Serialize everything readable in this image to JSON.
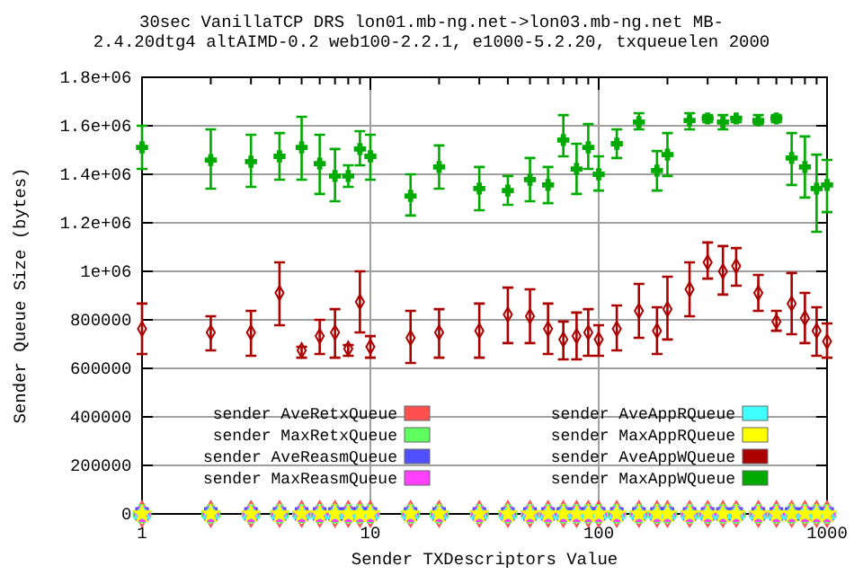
{
  "chart_data": {
    "type": "scatter",
    "title": "30sec VanillaTCP DRS lon01.mb-ng.net->lon03.mb-ng.net MB-",
    "subtitle": "2.4.20dtg4 altAIMD-0.2 web100-2.2.1, e1000-5.2.20, txqueuelen 2000",
    "xlabel": "Sender TXDescriptors Value",
    "ylabel": "Sender Queue Size (bytes)",
    "x": [
      1,
      2,
      3,
      4,
      5,
      6,
      7,
      8,
      9,
      10,
      15,
      20,
      30,
      40,
      50,
      60,
      70,
      80,
      90,
      100,
      120,
      150,
      180,
      200,
      250,
      300,
      350,
      400,
      500,
      600,
      700,
      800,
      900,
      1000
    ],
    "log": "x",
    "xlim": [
      1,
      1000
    ],
    "xticks": [
      1,
      {
        "value": 2,
        "label": null
      },
      {
        "value": 3,
        "label": null
      },
      {
        "value": 4,
        "label": null
      },
      {
        "value": 5,
        "label": null
      },
      {
        "value": 6,
        "label": null
      },
      {
        "value": 7,
        "label": null
      },
      {
        "value": 8,
        "label": null
      },
      {
        "value": 9,
        "label": null
      },
      10,
      {
        "value": 20,
        "label": null
      },
      {
        "value": 30,
        "label": null
      },
      {
        "value": 40,
        "label": null
      },
      {
        "value": 50,
        "label": null
      },
      {
        "value": 60,
        "label": null
      },
      {
        "value": 70,
        "label": null
      },
      {
        "value": 80,
        "label": null
      },
      {
        "value": 90,
        "label": null
      },
      100,
      {
        "value": 200,
        "label": null
      },
      {
        "value": 300,
        "label": null
      },
      {
        "value": 400,
        "label": null
      },
      {
        "value": 500,
        "label": null
      },
      {
        "value": 600,
        "label": null
      },
      {
        "value": 700,
        "label": null
      },
      {
        "value": 800,
        "label": null
      },
      {
        "value": 900,
        "label": null
      },
      1000
    ],
    "ylim": [
      0,
      1800000
    ],
    "yticks": [
      0,
      200000,
      400000,
      600000,
      800000,
      {
        "value": 1000000,
        "label": "1e+06"
      },
      {
        "value": 1200000,
        "label": "1.2e+06"
      },
      {
        "value": 1400000,
        "label": "1.4e+06"
      },
      {
        "value": 1600000,
        "label": "1.6e+06"
      },
      {
        "value": 1800000,
        "label": "1.8e+06"
      }
    ],
    "grid": true,
    "legend": "bottom",
    "series": [
      {
        "name": "sender AveRetxQueue",
        "color": "#ff5050",
        "marker": "diamond",
        "values": [
          0,
          0,
          0,
          0,
          0,
          0,
          0,
          0,
          0,
          0,
          0,
          0,
          0,
          0,
          0,
          0,
          0,
          0,
          0,
          0,
          0,
          0,
          0,
          0,
          0,
          0,
          0,
          0,
          0,
          0,
          0,
          0,
          0,
          0
        ]
      },
      {
        "name": "sender MaxRetxQueue",
        "color": "#60ff60",
        "marker": "cross",
        "values": [
          0,
          0,
          0,
          0,
          0,
          0,
          0,
          0,
          0,
          0,
          0,
          0,
          0,
          0,
          0,
          0,
          0,
          0,
          0,
          0,
          0,
          0,
          0,
          0,
          0,
          0,
          0,
          0,
          0,
          0,
          0,
          0,
          0,
          0
        ]
      },
      {
        "name": "sender AveReasmQueue",
        "color": "#5050ff",
        "marker": "square",
        "values": [
          0,
          0,
          0,
          0,
          0,
          0,
          0,
          0,
          0,
          0,
          0,
          0,
          0,
          0,
          0,
          0,
          0,
          0,
          0,
          0,
          0,
          0,
          0,
          0,
          0,
          0,
          0,
          0,
          0,
          0,
          0,
          0,
          0,
          0
        ]
      },
      {
        "name": "sender MaxReasmQueue",
        "color": "#ff40ff",
        "marker": "cross",
        "values": [
          0,
          0,
          0,
          0,
          0,
          0,
          0,
          0,
          0,
          0,
          0,
          0,
          0,
          0,
          0,
          0,
          0,
          0,
          0,
          0,
          0,
          0,
          0,
          0,
          0,
          0,
          0,
          0,
          0,
          0,
          0,
          0,
          0,
          0
        ]
      },
      {
        "name": "sender AveAppRQueue",
        "color": "#40ffff",
        "marker": "triangle",
        "values": [
          0,
          0,
          0,
          0,
          0,
          0,
          0,
          0,
          0,
          0,
          0,
          0,
          0,
          0,
          0,
          0,
          0,
          0,
          0,
          0,
          0,
          0,
          0,
          0,
          0,
          0,
          0,
          0,
          0,
          0,
          0,
          0,
          0,
          0
        ]
      },
      {
        "name": "sender MaxAppRQueue",
        "color": "#ffff00",
        "marker": "star",
        "values": [
          0,
          0,
          0,
          0,
          0,
          0,
          0,
          0,
          0,
          0,
          0,
          0,
          0,
          0,
          0,
          0,
          0,
          0,
          0,
          0,
          0,
          0,
          0,
          0,
          0,
          0,
          0,
          0,
          0,
          0,
          0,
          0,
          0,
          0
        ]
      },
      {
        "name": "sender AveAppWQueue",
        "color": "#aa0000",
        "marker": "diamond",
        "values": [
          763000,
          748000,
          748000,
          911000,
          674000,
          733000,
          748000,
          681000,
          874000,
          689000,
          726000,
          748000,
          755000,
          822000,
          815000,
          763000,
          719000,
          733000,
          748000,
          719000,
          763000,
          837000,
          755000,
          844000,
          926000,
          1037000,
          1000000,
          1022000,
          911000,
          793000,
          867000,
          807000,
          755000,
          711000
        ],
        "errors": [
          [
            659000,
            867000
          ],
          [
            674000,
            815000
          ],
          [
            652000,
            837000
          ],
          [
            778000,
            1037000
          ],
          [
            644000,
            689000
          ],
          [
            659000,
            800000
          ],
          [
            644000,
            844000
          ],
          [
            652000,
            696000
          ],
          [
            748000,
            1000000
          ],
          [
            644000,
            733000
          ],
          [
            622000,
            837000
          ],
          [
            644000,
            844000
          ],
          [
            644000,
            867000
          ],
          [
            704000,
            933000
          ],
          [
            704000,
            926000
          ],
          [
            659000,
            867000
          ],
          [
            637000,
            793000
          ],
          [
            637000,
            830000
          ],
          [
            652000,
            844000
          ],
          [
            652000,
            778000
          ],
          [
            674000,
            859000
          ],
          [
            726000,
            948000
          ],
          [
            659000,
            852000
          ],
          [
            719000,
            978000
          ],
          [
            815000,
            1037000
          ],
          [
            970000,
            1119000
          ],
          [
            904000,
            1104000
          ],
          [
            941000,
            1096000
          ],
          [
            837000,
            985000
          ],
          [
            755000,
            837000
          ],
          [
            741000,
            993000
          ],
          [
            704000,
            911000
          ],
          [
            652000,
            852000
          ],
          [
            644000,
            785000
          ]
        ]
      },
      {
        "name": "sender MaxAppWQueue",
        "color": "#00aa00",
        "marker": "cross",
        "values": [
          1511000,
          1459000,
          1452000,
          1474000,
          1511000,
          1444000,
          1393000,
          1393000,
          1504000,
          1474000,
          1311000,
          1430000,
          1341000,
          1333000,
          1378000,
          1356000,
          1541000,
          1422000,
          1511000,
          1400000,
          1526000,
          1615000,
          1415000,
          1481000,
          1622000,
          1630000,
          1615000,
          1630000,
          1622000,
          1630000,
          1467000,
          1430000,
          1341000,
          1356000
        ],
        "errors": [
          [
            1422000,
            1600000
          ],
          [
            1341000,
            1585000
          ],
          [
            1348000,
            1563000
          ],
          [
            1378000,
            1570000
          ],
          [
            1378000,
            1637000
          ],
          [
            1319000,
            1563000
          ],
          [
            1289000,
            1504000
          ],
          [
            1348000,
            1437000
          ],
          [
            1437000,
            1578000
          ],
          [
            1378000,
            1563000
          ],
          [
            1230000,
            1400000
          ],
          [
            1341000,
            1519000
          ],
          [
            1252000,
            1430000
          ],
          [
            1274000,
            1393000
          ],
          [
            1289000,
            1467000
          ],
          [
            1281000,
            1430000
          ],
          [
            1474000,
            1644000
          ],
          [
            1319000,
            1526000
          ],
          [
            1422000,
            1607000
          ],
          [
            1333000,
            1474000
          ],
          [
            1467000,
            1585000
          ],
          [
            1585000,
            1652000
          ],
          [
            1333000,
            1496000
          ],
          [
            1393000,
            1570000
          ],
          [
            1585000,
            1652000
          ],
          [
            1615000,
            1644000
          ],
          [
            1585000,
            1644000
          ],
          [
            1615000,
            1637000
          ],
          [
            1607000,
            1644000
          ],
          [
            1615000,
            1644000
          ],
          [
            1356000,
            1570000
          ],
          [
            1304000,
            1556000
          ],
          [
            1163000,
            1481000
          ],
          [
            1244000,
            1459000
          ]
        ]
      }
    ]
  }
}
